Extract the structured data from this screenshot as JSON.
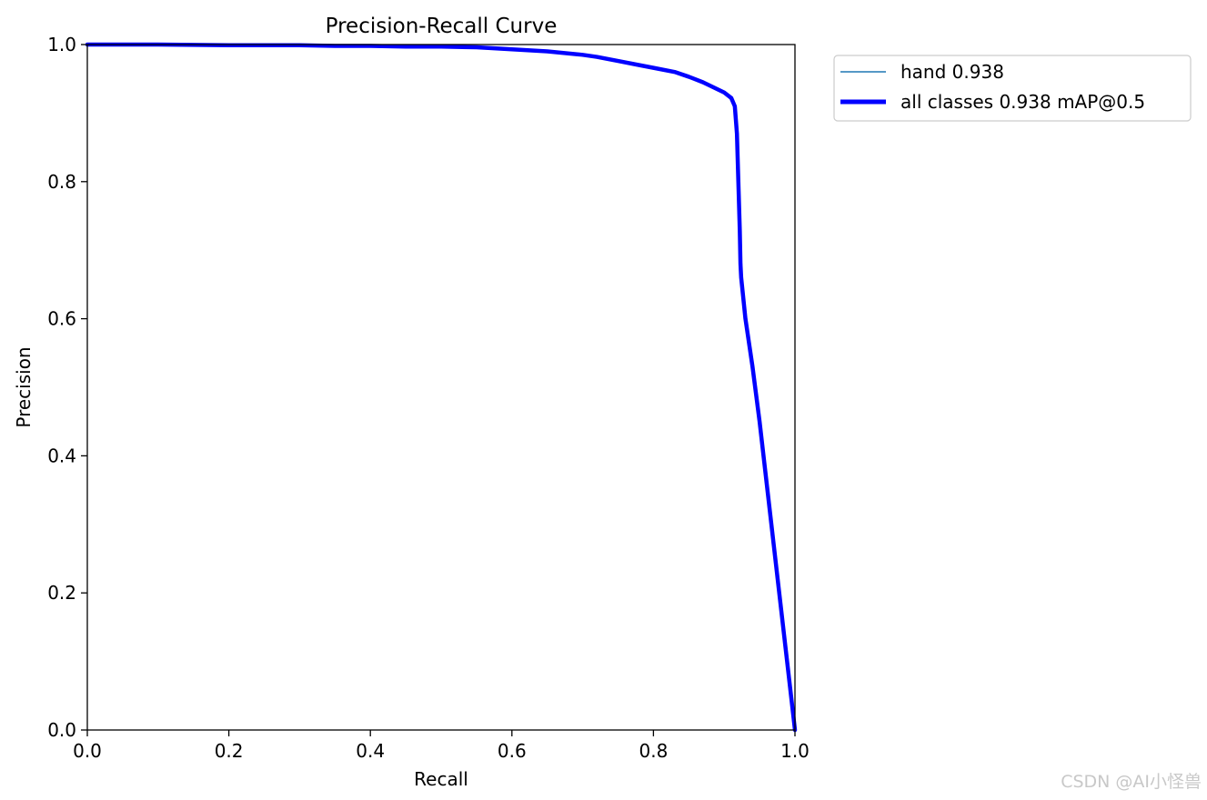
{
  "chart_data": {
    "type": "line",
    "title": "Precision-Recall Curve",
    "xlabel": "Recall",
    "ylabel": "Precision",
    "xlim": [
      0,
      1
    ],
    "ylim": [
      0,
      1
    ],
    "xticks": [
      "0.0",
      "0.2",
      "0.4",
      "0.6",
      "0.8",
      "1.0"
    ],
    "yticks": [
      "0.0",
      "0.2",
      "0.4",
      "0.6",
      "0.8",
      "1.0"
    ],
    "grid": false,
    "legend_position": "outside-upper-right",
    "series": [
      {
        "name": "hand 0.938",
        "color": "#1f77b4",
        "style": "thin",
        "x": [
          0.0,
          0.1,
          0.2,
          0.3,
          0.35,
          0.4,
          0.45,
          0.5,
          0.55,
          0.6,
          0.65,
          0.7,
          0.72,
          0.75,
          0.78,
          0.8,
          0.83,
          0.85,
          0.87,
          0.89,
          0.9,
          0.91,
          0.915,
          0.918,
          0.92,
          0.922,
          0.923,
          0.924,
          0.93,
          0.94,
          0.95,
          0.96,
          0.97,
          0.98,
          0.99,
          1.0
        ],
        "y": [
          1.0,
          1.0,
          0.999,
          0.999,
          0.998,
          0.998,
          0.997,
          0.997,
          0.996,
          0.993,
          0.99,
          0.985,
          0.982,
          0.976,
          0.97,
          0.966,
          0.96,
          0.953,
          0.945,
          0.935,
          0.93,
          0.922,
          0.91,
          0.87,
          0.8,
          0.73,
          0.68,
          0.66,
          0.6,
          0.53,
          0.45,
          0.36,
          0.27,
          0.18,
          0.09,
          0.0
        ]
      },
      {
        "name": "all classes 0.938 mAP@0.5",
        "color": "#0000ff",
        "style": "thick",
        "x": [
          0.0,
          0.1,
          0.2,
          0.3,
          0.35,
          0.4,
          0.45,
          0.5,
          0.55,
          0.6,
          0.65,
          0.7,
          0.72,
          0.75,
          0.78,
          0.8,
          0.83,
          0.85,
          0.87,
          0.89,
          0.9,
          0.91,
          0.915,
          0.918,
          0.92,
          0.922,
          0.923,
          0.924,
          0.93,
          0.94,
          0.95,
          0.96,
          0.97,
          0.98,
          0.99,
          1.0
        ],
        "y": [
          1.0,
          1.0,
          0.999,
          0.999,
          0.998,
          0.998,
          0.997,
          0.997,
          0.996,
          0.993,
          0.99,
          0.985,
          0.982,
          0.976,
          0.97,
          0.966,
          0.96,
          0.953,
          0.945,
          0.935,
          0.93,
          0.922,
          0.91,
          0.87,
          0.8,
          0.73,
          0.68,
          0.66,
          0.6,
          0.53,
          0.45,
          0.36,
          0.27,
          0.18,
          0.09,
          0.0
        ]
      }
    ]
  },
  "watermark": "CSDN @AI小怪兽"
}
